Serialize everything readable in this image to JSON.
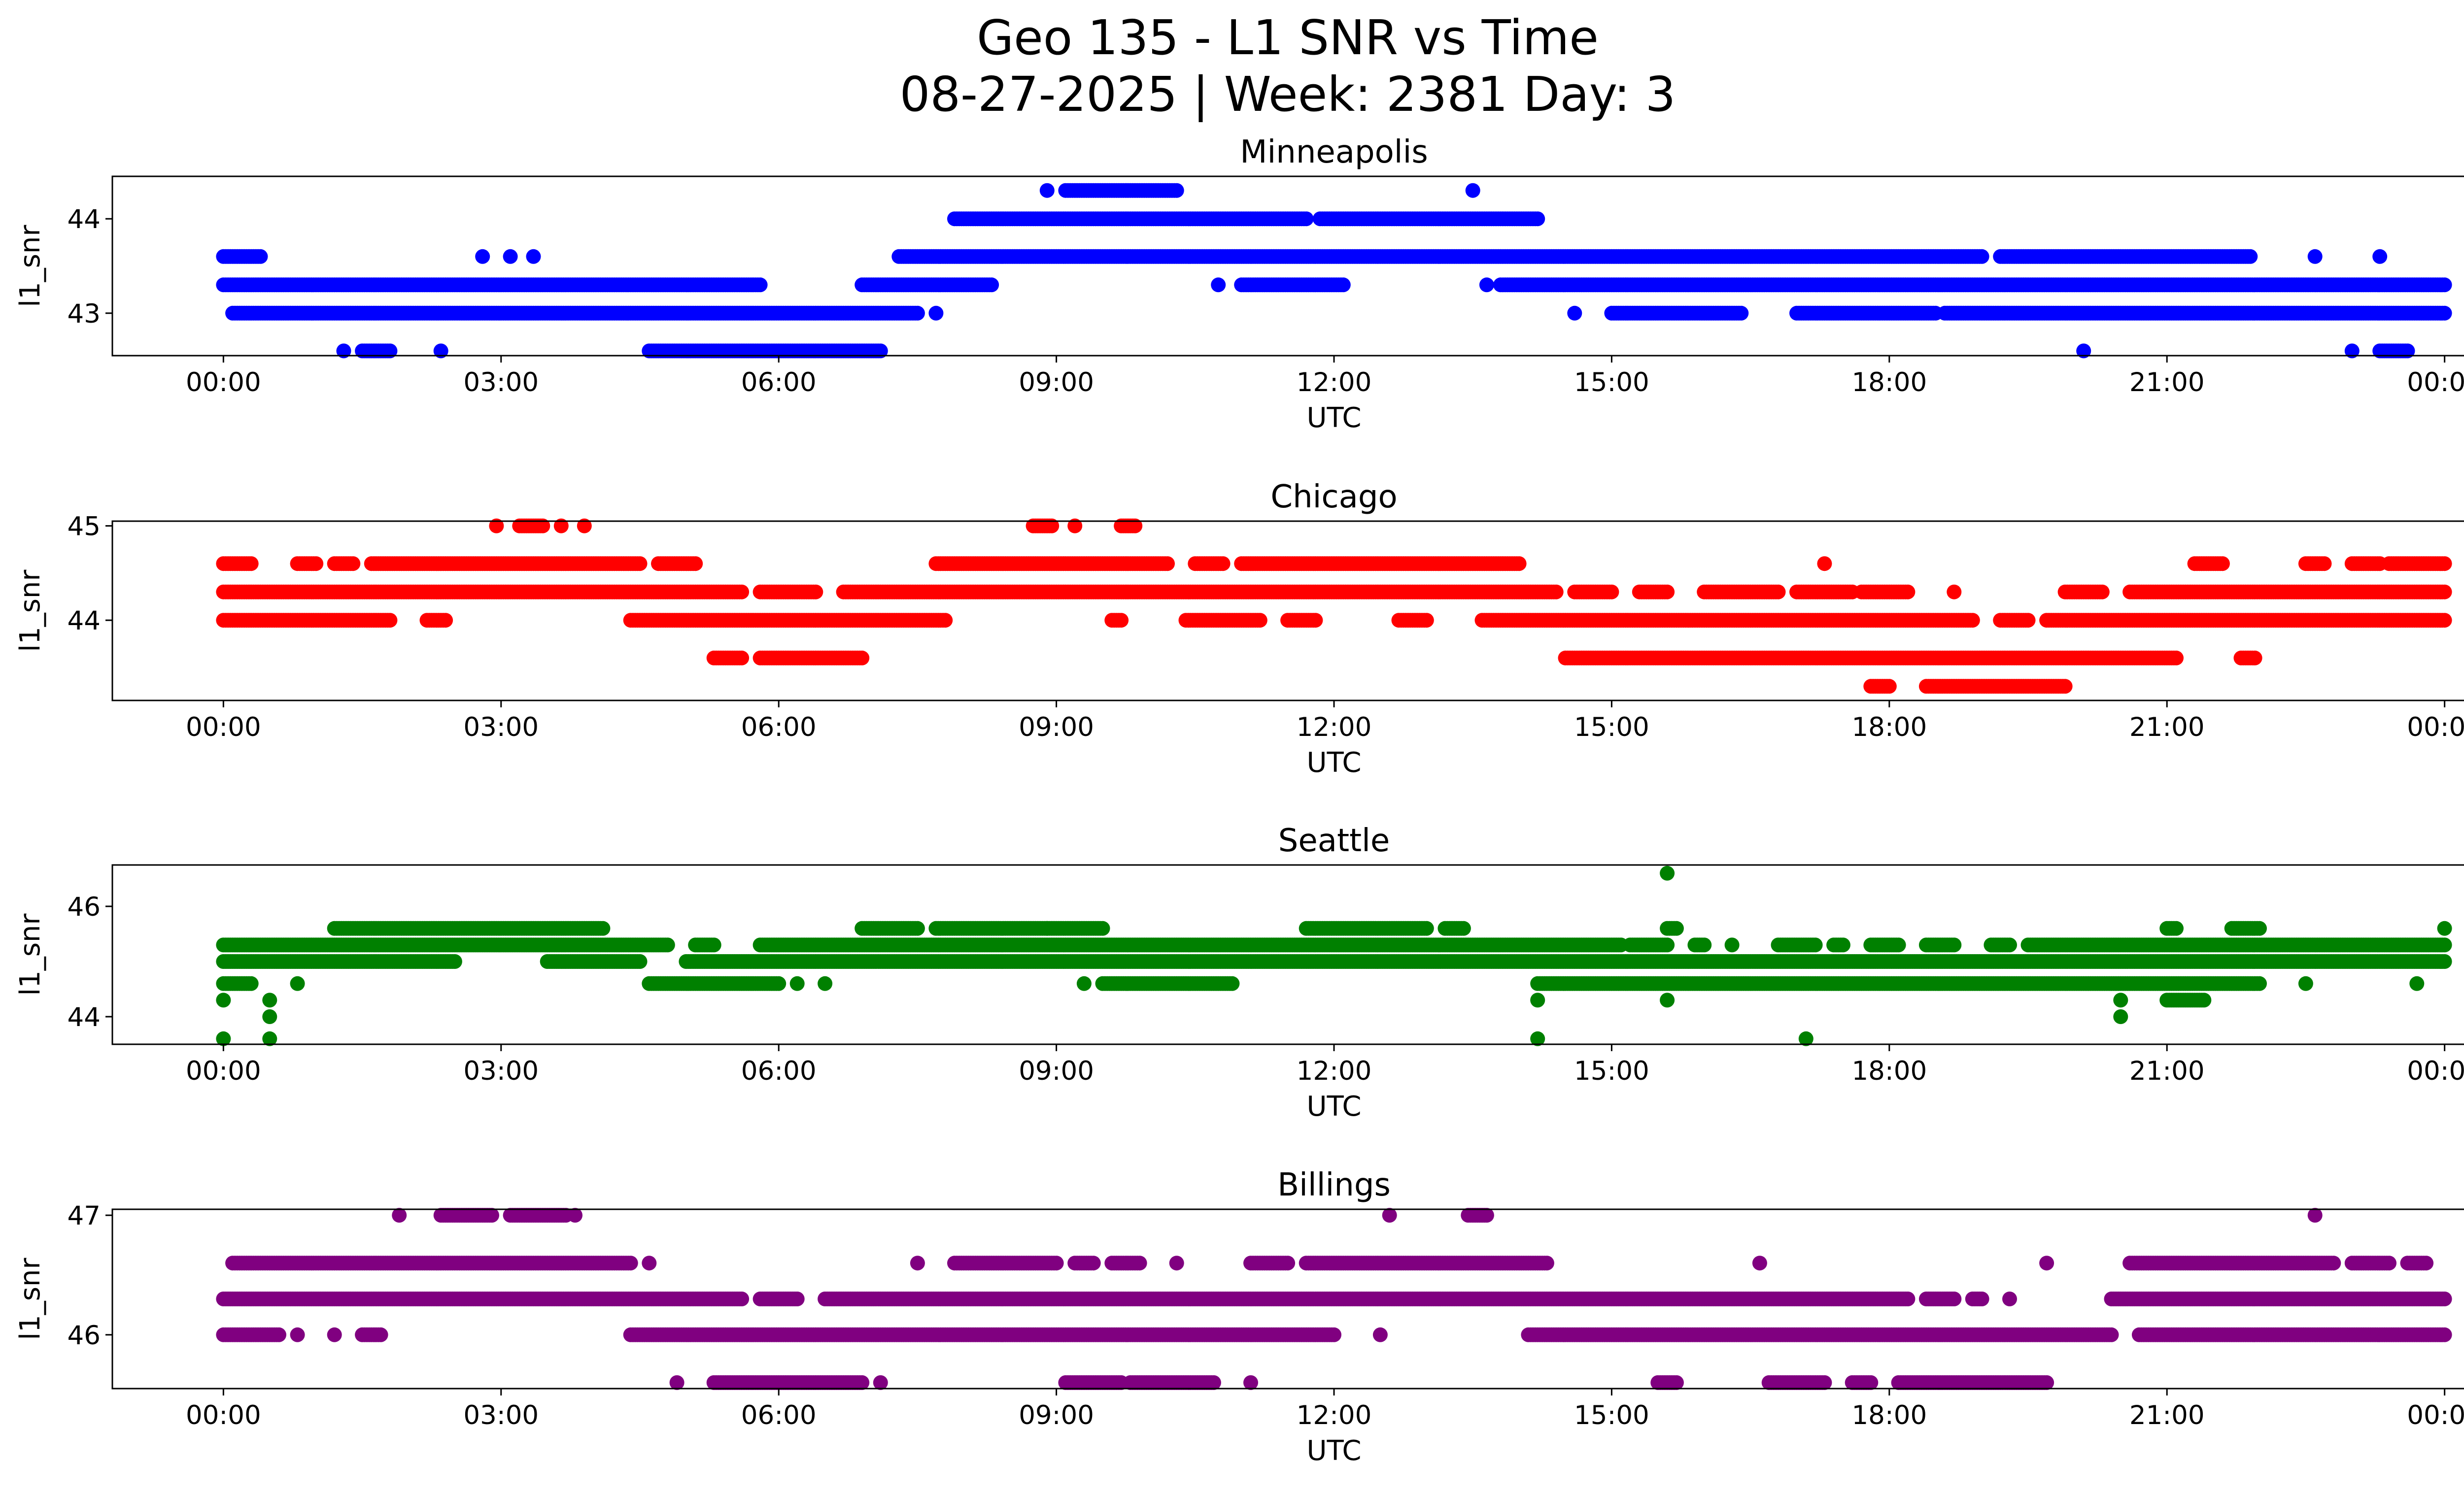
{
  "chart_data": {
    "type": "scatter",
    "title_line1": "Geo 135 - L1 SNR vs Time",
    "title_line2": "08-27-2025 | Week: 2381 Day: 3",
    "x_tick_labels": [
      "00:00",
      "03:00",
      "06:00",
      "09:00",
      "12:00",
      "15:00",
      "18:00",
      "21:00",
      "00:00"
    ],
    "x_tick_hours": [
      0,
      3,
      6,
      9,
      12,
      15,
      18,
      21,
      24
    ],
    "xlim_hours": [
      -1.2,
      25.2
    ],
    "panels": [
      {
        "title": "Minneapolis",
        "color": "#0000ff",
        "xlabel": "UTC",
        "ylabel": "l1_snr",
        "ylim": [
          42.55,
          44.45
        ],
        "yticks": [
          43,
          44
        ],
        "ytick_labels": [
          "43",
          "44"
        ],
        "levels": [
          {
            "y": 44.3,
            "segments": [
              [
                8.9,
                8.9
              ],
              [
                9.1,
                10.3
              ],
              [
                13.5,
                13.5
              ]
            ]
          },
          {
            "y": 44.0,
            "segments": [
              [
                7.9,
                11.7
              ],
              [
                11.85,
                14.2
              ]
            ]
          },
          {
            "y": 43.6,
            "segments": [
              [
                0.0,
                0.4
              ],
              [
                2.8,
                2.8
              ],
              [
                3.1,
                3.1
              ],
              [
                3.35,
                3.35
              ],
              [
                7.3,
                19.0
              ],
              [
                19.2,
                21.9
              ],
              [
                22.6,
                22.6
              ],
              [
                23.3,
                23.3
              ]
            ]
          },
          {
            "y": 43.3,
            "segments": [
              [
                0.0,
                5.8
              ],
              [
                6.9,
                8.3
              ],
              [
                10.75,
                10.75
              ],
              [
                11.0,
                12.1
              ],
              [
                13.65,
                13.65
              ],
              [
                13.8,
                24.0
              ]
            ]
          },
          {
            "y": 43.0,
            "segments": [
              [
                0.1,
                7.5
              ],
              [
                7.7,
                7.7
              ],
              [
                14.6,
                14.6
              ],
              [
                15.0,
                16.4
              ],
              [
                17.0,
                18.5
              ],
              [
                18.6,
                24.0
              ]
            ]
          },
          {
            "y": 42.6,
            "segments": [
              [
                1.3,
                1.3
              ],
              [
                1.5,
                1.8
              ],
              [
                2.35,
                2.35
              ],
              [
                4.6,
                7.1
              ],
              [
                20.1,
                20.1
              ],
              [
                23.0,
                23.0
              ],
              [
                23.3,
                23.6
              ]
            ]
          }
        ]
      },
      {
        "title": "Chicago",
        "color": "#ff0000",
        "xlabel": "UTC",
        "ylabel": "l1_snr",
        "ylim": [
          43.15,
          45.05
        ],
        "yticks": [
          44,
          45
        ],
        "ytick_labels": [
          "44",
          "45"
        ],
        "levels": [
          {
            "y": 45.0,
            "segments": [
              [
                2.95,
                2.95
              ],
              [
                3.2,
                3.45
              ],
              [
                3.65,
                3.65
              ],
              [
                3.9,
                3.9
              ],
              [
                8.75,
                8.95
              ],
              [
                9.2,
                9.2
              ],
              [
                9.7,
                9.85
              ]
            ]
          },
          {
            "y": 44.6,
            "segments": [
              [
                0.0,
                0.3
              ],
              [
                0.8,
                1.0
              ],
              [
                1.2,
                1.4
              ],
              [
                1.6,
                4.5
              ],
              [
                4.7,
                5.1
              ],
              [
                7.7,
                10.2
              ],
              [
                10.5,
                10.8
              ],
              [
                11.0,
                14.0
              ],
              [
                17.3,
                17.3
              ],
              [
                21.3,
                21.6
              ],
              [
                22.5,
                22.7
              ],
              [
                23.0,
                23.3
              ],
              [
                23.4,
                24.0
              ]
            ]
          },
          {
            "y": 44.3,
            "segments": [
              [
                0.0,
                5.6
              ],
              [
                5.8,
                6.4
              ],
              [
                6.7,
                14.4
              ],
              [
                14.6,
                15.0
              ],
              [
                15.3,
                15.6
              ],
              [
                16.0,
                16.8
              ],
              [
                17.0,
                17.6
              ],
              [
                17.7,
                18.2
              ],
              [
                18.7,
                18.7
              ],
              [
                19.9,
                20.3
              ],
              [
                20.6,
                24.0
              ]
            ]
          },
          {
            "y": 44.0,
            "segments": [
              [
                0.0,
                1.8
              ],
              [
                2.2,
                2.4
              ],
              [
                4.4,
                7.8
              ],
              [
                9.6,
                9.7
              ],
              [
                10.4,
                11.2
              ],
              [
                11.5,
                11.8
              ],
              [
                12.7,
                13.0
              ],
              [
                13.6,
                18.9
              ],
              [
                19.2,
                19.5
              ],
              [
                19.7,
                24.0
              ]
            ]
          },
          {
            "y": 43.6,
            "segments": [
              [
                5.3,
                5.6
              ],
              [
                5.8,
                6.9
              ],
              [
                14.5,
                21.1
              ],
              [
                21.8,
                21.95
              ]
            ]
          },
          {
            "y": 43.3,
            "segments": [
              [
                17.8,
                18.0
              ],
              [
                18.4,
                19.9
              ]
            ]
          }
        ]
      },
      {
        "title": "Seattle",
        "color": "#008000",
        "xlabel": "UTC",
        "ylabel": "l1_snr",
        "ylim": [
          43.5,
          46.75
        ],
        "yticks": [
          44,
          46
        ],
        "ytick_labels": [
          "44",
          "46"
        ],
        "levels": [
          {
            "y": 46.6,
            "segments": [
              [
                15.6,
                15.6
              ]
            ]
          },
          {
            "y": 45.6,
            "segments": [
              [
                1.2,
                4.1
              ],
              [
                6.9,
                7.5
              ],
              [
                7.7,
                8.9
              ],
              [
                8.9,
                9.5
              ],
              [
                11.7,
                13.0
              ],
              [
                13.2,
                13.4
              ],
              [
                15.6,
                15.7
              ],
              [
                21.0,
                21.1
              ],
              [
                21.7,
                22.0
              ],
              [
                24.0,
                24.0
              ]
            ]
          },
          {
            "y": 45.3,
            "segments": [
              [
                0.0,
                4.8
              ],
              [
                5.1,
                5.3
              ],
              [
                5.8,
                15.1
              ],
              [
                15.2,
                15.6
              ],
              [
                15.9,
                16.0
              ],
              [
                16.3,
                16.3
              ],
              [
                16.8,
                17.2
              ],
              [
                17.4,
                17.5
              ],
              [
                17.8,
                18.1
              ],
              [
                18.4,
                18.7
              ],
              [
                19.1,
                19.3
              ],
              [
                19.5,
                24.0
              ]
            ]
          },
          {
            "y": 45.0,
            "segments": [
              [
                0.0,
                2.5
              ],
              [
                3.5,
                4.5
              ],
              [
                5.0,
                24.0
              ]
            ]
          },
          {
            "y": 44.6,
            "segments": [
              [
                0.0,
                0.3
              ],
              [
                0.8,
                0.8
              ],
              [
                4.6,
                6.0
              ],
              [
                6.2,
                6.2
              ],
              [
                6.5,
                6.5
              ],
              [
                9.3,
                9.3
              ],
              [
                9.5,
                10.9
              ],
              [
                14.2,
                22.0
              ],
              [
                22.5,
                22.5
              ],
              [
                23.7,
                23.7
              ]
            ]
          },
          {
            "y": 44.3,
            "segments": [
              [
                0.0,
                0.0
              ],
              [
                0.5,
                0.5
              ],
              [
                14.2,
                14.2
              ],
              [
                15.6,
                15.6
              ],
              [
                20.5,
                20.5
              ],
              [
                21.0,
                21.4
              ]
            ]
          },
          {
            "y": 44.0,
            "segments": [
              [
                0.5,
                0.5
              ],
              [
                20.5,
                20.5
              ]
            ]
          },
          {
            "y": 43.6,
            "segments": [
              [
                0.0,
                0.0
              ],
              [
                0.5,
                0.5
              ],
              [
                14.2,
                14.2
              ],
              [
                17.1,
                17.1
              ]
            ]
          }
        ]
      },
      {
        "title": "Billings",
        "color": "#800080",
        "xlabel": "UTC",
        "ylabel": "l1_snr",
        "ylim": [
          45.55,
          47.05
        ],
        "yticks": [
          46,
          47
        ],
        "ytick_labels": [
          "46",
          "47"
        ],
        "levels": [
          {
            "y": 47.0,
            "segments": [
              [
                1.9,
                1.9
              ],
              [
                2.35,
                2.9
              ],
              [
                3.1,
                3.7
              ],
              [
                3.8,
                3.8
              ],
              [
                12.6,
                12.6
              ],
              [
                13.45,
                13.65
              ],
              [
                22.6,
                22.6
              ]
            ]
          },
          {
            "y": 46.6,
            "segments": [
              [
                0.1,
                4.4
              ],
              [
                4.6,
                4.6
              ],
              [
                7.5,
                7.5
              ],
              [
                7.9,
                9.0
              ],
              [
                9.2,
                9.4
              ],
              [
                9.6,
                9.9
              ],
              [
                10.3,
                10.3
              ],
              [
                11.1,
                11.5
              ],
              [
                11.7,
                14.3
              ],
              [
                16.6,
                16.6
              ],
              [
                19.7,
                19.7
              ],
              [
                20.6,
                22.8
              ],
              [
                23.0,
                23.4
              ],
              [
                23.6,
                23.8
              ]
            ]
          },
          {
            "y": 46.3,
            "segments": [
              [
                0.0,
                5.6
              ],
              [
                5.8,
                6.2
              ],
              [
                6.5,
                18.2
              ],
              [
                18.4,
                18.7
              ],
              [
                18.9,
                19.0
              ],
              [
                19.3,
                19.3
              ],
              [
                20.4,
                24.0
              ]
            ]
          },
          {
            "y": 46.0,
            "segments": [
              [
                0.0,
                0.6
              ],
              [
                0.8,
                0.8
              ],
              [
                1.2,
                1.2
              ],
              [
                1.5,
                1.7
              ],
              [
                4.4,
                12.0
              ],
              [
                12.5,
                12.5
              ],
              [
                14.1,
                20.4
              ],
              [
                20.7,
                24.0
              ]
            ]
          },
          {
            "y": 45.6,
            "segments": [
              [
                4.9,
                4.9
              ],
              [
                5.3,
                6.9
              ],
              [
                7.1,
                7.1
              ],
              [
                9.1,
                9.7
              ],
              [
                9.8,
                10.7
              ],
              [
                11.1,
                11.1
              ],
              [
                15.5,
                15.7
              ],
              [
                16.7,
                17.3
              ],
              [
                17.6,
                17.8
              ],
              [
                18.1,
                19.7
              ]
            ]
          }
        ]
      }
    ]
  }
}
